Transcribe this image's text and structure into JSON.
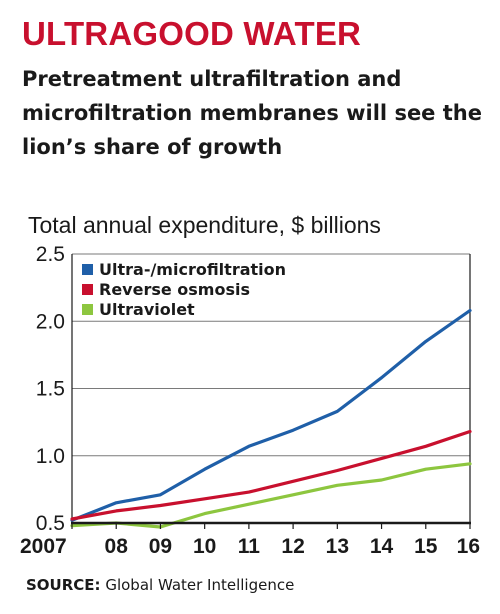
{
  "title": "ULTRAGOOD WATER",
  "subtitle": "Pretreatment ultrafiltration and microfiltration membranes will see the lion’s share of growth",
  "source_label": "SOURCE:",
  "source_text": "Global Water Intelligence",
  "colors": {
    "title": "#c8102e",
    "grid": "#7a7a7a",
    "axis": "#1a1a1a"
  },
  "chart_data": {
    "type": "line",
    "ylabel": "Total annual expenditure, $ billions",
    "x": [
      2007,
      2008,
      2009,
      2010,
      2011,
      2012,
      2013,
      2014,
      2015,
      2016
    ],
    "xtick_labels": [
      "2007",
      "08",
      "09",
      "10",
      "11",
      "12",
      "13",
      "14",
      "15",
      "16"
    ],
    "yticks": [
      0.5,
      1.0,
      1.5,
      2.0,
      2.5
    ],
    "ytick_labels": [
      "0.5",
      "1.0",
      "1.5",
      "2.0",
      "2.5"
    ],
    "ylim": [
      0.5,
      2.5
    ],
    "grid": true,
    "legend_position": "top-left",
    "series": [
      {
        "name": "Ultra-/microfiltration",
        "color": "#1f5fa8",
        "values": [
          0.52,
          0.65,
          0.71,
          0.9,
          1.07,
          1.19,
          1.33,
          1.58,
          1.85,
          2.08
        ]
      },
      {
        "name": "Reverse osmosis",
        "color": "#c8102e",
        "values": [
          0.53,
          0.59,
          0.63,
          0.68,
          0.73,
          0.81,
          0.89,
          0.98,
          1.07,
          1.18
        ]
      },
      {
        "name": "Ultraviolet",
        "color": "#8dc63f",
        "values": [
          0.48,
          0.5,
          0.47,
          0.57,
          0.64,
          0.71,
          0.78,
          0.82,
          0.9,
          0.94
        ]
      }
    ]
  }
}
